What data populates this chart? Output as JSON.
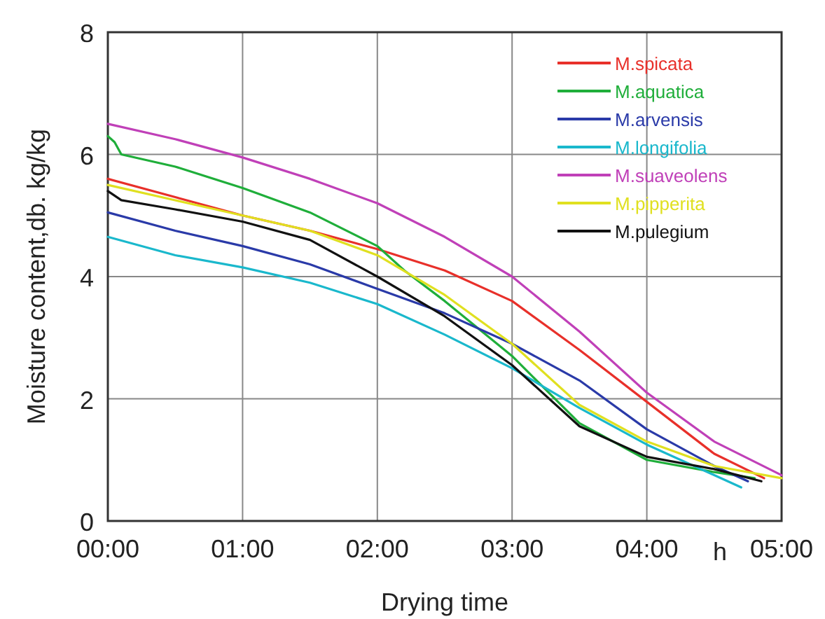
{
  "chart_data": {
    "type": "line",
    "xlabel": "Drying time",
    "ylabel": "Moisture content,db. kg/kg",
    "annotations": [
      "h"
    ],
    "xlim": [
      0,
      5
    ],
    "xticks": [
      {
        "value": 0,
        "label": "00:00"
      },
      {
        "value": 1,
        "label": "01:00"
      },
      {
        "value": 2,
        "label": "02:00"
      },
      {
        "value": 3,
        "label": "03:00"
      },
      {
        "value": 4,
        "label": "04:00"
      },
      {
        "value": 5,
        "label": "05:00"
      }
    ],
    "ylim": [
      0,
      8
    ],
    "yticks": [
      0,
      2,
      4,
      6,
      8
    ],
    "grid": true,
    "legend": "top right",
    "marker": "none",
    "line_style": "solid",
    "series": [
      {
        "name": "M.spicata",
        "color": "#e8302a",
        "x": [
          0,
          0.5,
          1,
          1.5,
          2,
          2.5,
          3,
          3.5,
          4,
          4.5,
          4.87
        ],
        "values": [
          5.6,
          5.3,
          5.0,
          4.75,
          4.45,
          4.1,
          3.6,
          2.8,
          1.95,
          1.1,
          0.7
        ]
      },
      {
        "name": "M.aquatica",
        "color": "#1fae3a",
        "x": [
          0,
          0.05,
          0.1,
          0.5,
          1,
          1.5,
          2,
          2.2,
          2.5,
          3,
          3.5,
          4,
          4.5,
          4.8
        ],
        "values": [
          6.3,
          6.2,
          6.0,
          5.8,
          5.45,
          5.05,
          4.5,
          4.1,
          3.6,
          2.7,
          1.6,
          1.0,
          0.8,
          0.7
        ]
      },
      {
        "name": "M.arvensis",
        "color": "#2a3aa8",
        "x": [
          0,
          0.5,
          1,
          1.5,
          2,
          2.5,
          3,
          3.5,
          4,
          4.5,
          4.75
        ],
        "values": [
          5.05,
          4.75,
          4.5,
          4.2,
          3.8,
          3.4,
          2.9,
          2.3,
          1.5,
          0.9,
          0.65
        ]
      },
      {
        "name": "M.longifolia",
        "color": "#1ab8cc",
        "x": [
          0,
          0.5,
          1,
          1.5,
          2,
          2.5,
          3,
          3.5,
          4,
          4.5,
          4.7
        ],
        "values": [
          4.65,
          4.35,
          4.15,
          3.9,
          3.55,
          3.05,
          2.5,
          1.85,
          1.25,
          0.75,
          0.55
        ]
      },
      {
        "name": "M.suaveolens",
        "color": "#c040b8",
        "x": [
          0,
          0.5,
          1,
          1.5,
          2,
          2.5,
          3,
          3.5,
          4,
          4.5,
          5
        ],
        "values": [
          6.5,
          6.25,
          5.95,
          5.6,
          5.2,
          4.65,
          4.0,
          3.1,
          2.1,
          1.3,
          0.75
        ]
      },
      {
        "name": "M.pipperita",
        "color": "#e0e020",
        "x": [
          0,
          0.5,
          1,
          1.5,
          2,
          2.5,
          3,
          3.5,
          4,
          4.5,
          5
        ],
        "values": [
          5.5,
          5.25,
          5.0,
          4.75,
          4.35,
          3.7,
          2.9,
          1.9,
          1.3,
          0.9,
          0.7
        ]
      },
      {
        "name": "M.pulegium",
        "color": "#111111",
        "x": [
          0,
          0.1,
          0.5,
          1,
          1.5,
          2,
          2.5,
          3,
          3.5,
          4,
          4.5,
          4.85
        ],
        "values": [
          5.4,
          5.25,
          5.1,
          4.9,
          4.6,
          4.0,
          3.35,
          2.55,
          1.55,
          1.05,
          0.85,
          0.65
        ]
      }
    ]
  }
}
